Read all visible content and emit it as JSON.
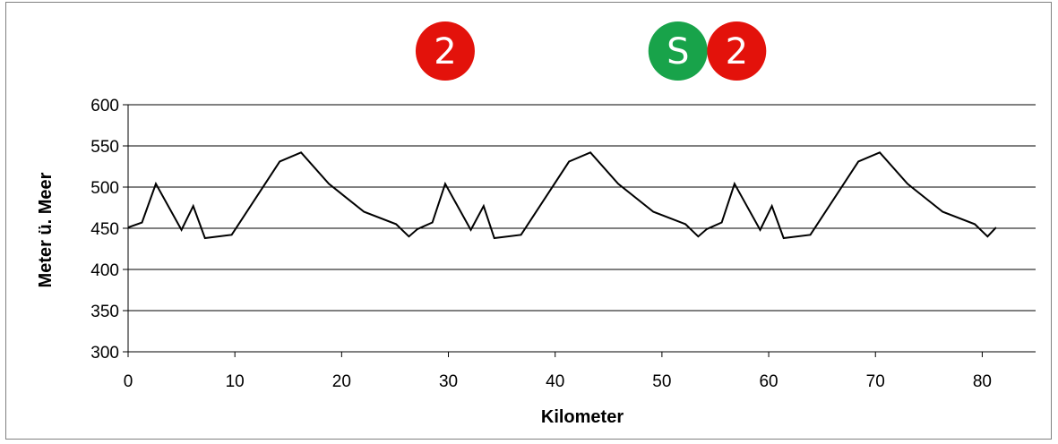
{
  "chart_data": {
    "type": "line",
    "xlabel": "Kilometer",
    "ylabel": "Meter ü. Meer",
    "xlim": [
      0,
      85
    ],
    "ylim": [
      300,
      600
    ],
    "x_ticks": [
      0,
      10,
      20,
      30,
      40,
      50,
      60,
      70,
      80
    ],
    "y_ticks": [
      300,
      350,
      400,
      450,
      500,
      550,
      600
    ],
    "grid": "horizontal",
    "line_color": "#000000",
    "series": [
      {
        "x": [
          0,
          1.3,
          2.6,
          5,
          6.1,
          7.2,
          9.7,
          14.2,
          16.2,
          18.8,
          22.1,
          25.1,
          26.3,
          27.1,
          28.5,
          29.7,
          32.1,
          33.3,
          34.3,
          36.8,
          41.3,
          43.3,
          45.9,
          49.2,
          52.2,
          53.4,
          54.2,
          55.6,
          56.8,
          59.2,
          60.3,
          61.4,
          63.9,
          68.4,
          70.4,
          73,
          76.3,
          79.3,
          80.5,
          81.3
        ],
        "y": [
          451,
          457,
          504,
          448,
          477,
          438,
          442,
          531,
          542,
          504,
          470,
          455,
          440,
          449,
          457,
          504,
          448,
          477,
          438,
          442,
          531,
          542,
          504,
          470,
          455,
          440,
          449,
          457,
          504,
          448,
          477,
          438,
          442,
          531,
          542,
          504,
          470,
          455,
          440,
          451
        ]
      }
    ]
  },
  "badges": [
    {
      "label": "2",
      "color": "#e3120b",
      "x_km": 29.7,
      "icon": "line-2-icon"
    },
    {
      "label": "S",
      "color": "#18a34a",
      "x_km": 51.5,
      "icon": "s-train-icon"
    },
    {
      "label": "2",
      "color": "#e3120b",
      "x_km": 57,
      "icon": "line-2-icon"
    }
  ]
}
